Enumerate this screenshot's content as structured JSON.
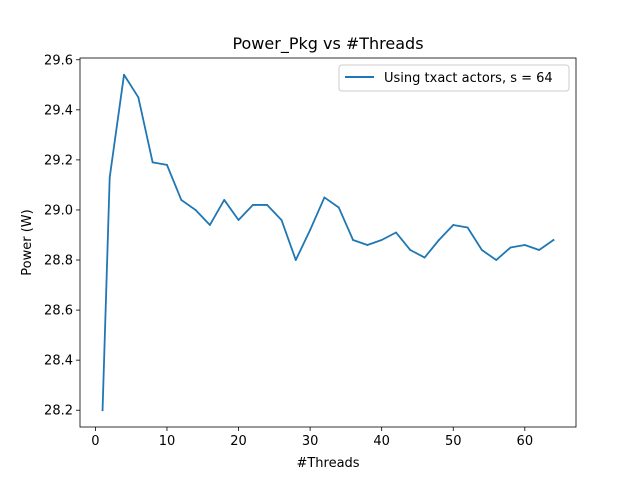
{
  "chart_data": {
    "type": "line",
    "title": "Power_Pkg vs #Threads",
    "xlabel": "#Threads",
    "ylabel": "Power (W)",
    "xlim": [
      -2.15,
      67.15
    ],
    "ylim": [
      28.133,
      29.607
    ],
    "xticks": [
      0,
      10,
      20,
      30,
      40,
      50,
      60
    ],
    "xtick_labels": [
      "0",
      "10",
      "20",
      "30",
      "40",
      "50",
      "60"
    ],
    "yticks": [
      28.2,
      28.4,
      28.6,
      28.8,
      29.0,
      29.2,
      29.4,
      29.6
    ],
    "ytick_labels": [
      "28.2",
      "28.4",
      "28.6",
      "28.8",
      "29.0",
      "29.2",
      "29.4",
      "29.6"
    ],
    "grid": false,
    "legend_position": "top-right",
    "series": [
      {
        "name": "Using txact actors, s = 64",
        "color": "#1f77b4",
        "x": [
          1,
          2,
          4,
          6,
          8,
          10,
          12,
          14,
          16,
          18,
          20,
          22,
          24,
          26,
          28,
          30,
          32,
          34,
          36,
          38,
          40,
          42,
          44,
          46,
          48,
          50,
          52,
          54,
          56,
          58,
          60,
          62,
          64
        ],
        "y": [
          28.2,
          29.13,
          29.54,
          29.45,
          29.19,
          29.18,
          29.04,
          29.0,
          28.94,
          29.04,
          28.96,
          29.02,
          29.02,
          28.96,
          28.8,
          28.92,
          29.05,
          29.01,
          28.88,
          28.86,
          28.88,
          28.91,
          28.84,
          28.81,
          28.88,
          28.94,
          28.93,
          28.84,
          28.8,
          28.85,
          28.86,
          28.84,
          28.88
        ]
      }
    ]
  }
}
